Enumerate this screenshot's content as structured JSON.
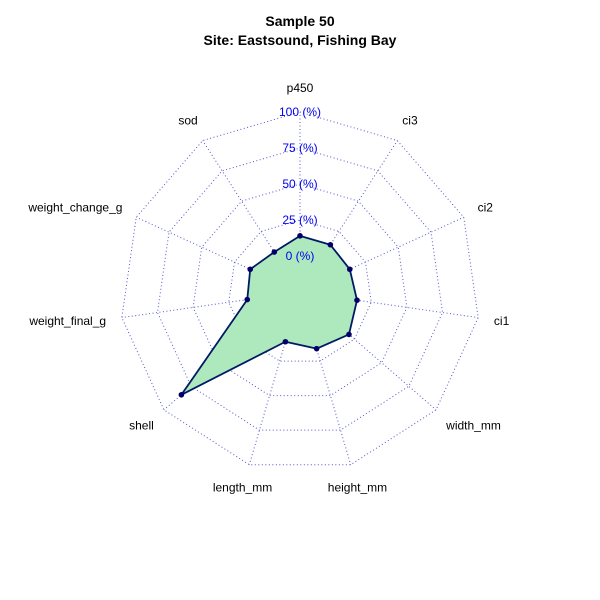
{
  "chart_data": {
    "type": "radar",
    "title": "Sample 50",
    "subtitle": "Site: Eastsound, Fishing Bay",
    "axes": [
      "p450",
      "ci3",
      "ci2",
      "ci1",
      "width_mm",
      "height_mm",
      "length_mm",
      "shell",
      "weight_final_g",
      "weight_change_g",
      "sod"
    ],
    "tick_labels": [
      "0 (%)",
      "25 (%)",
      "50 (%)",
      "75 (%)",
      "100 (%)"
    ],
    "range": [
      0,
      100
    ],
    "grid_levels": 5,
    "series": [
      {
        "values": [
          14,
          14,
          13,
          15,
          20,
          16,
          11,
          84,
          12,
          13,
          8
        ]
      }
    ],
    "colors": {
      "fill": "#aee8bd",
      "line": "#001a66",
      "point": "#000066",
      "grid": "#5555cc",
      "tick": "#0000ee"
    }
  }
}
